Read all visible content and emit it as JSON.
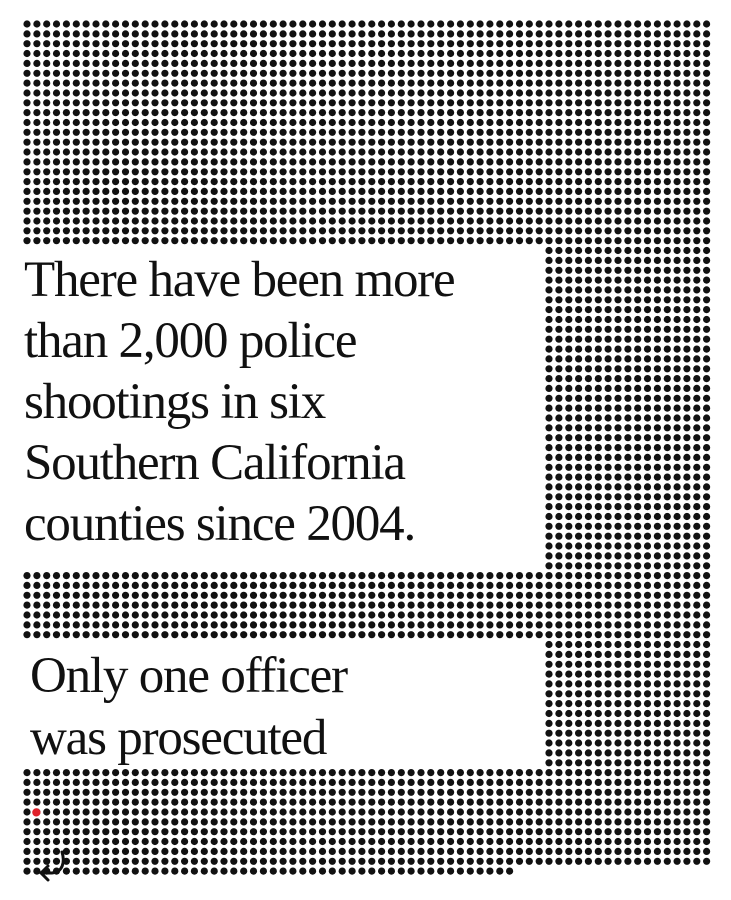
{
  "headline": {
    "lines": [
      "There have been more",
      "than 2,000 police",
      "shootings in six",
      "Southern California",
      "counties since 2004."
    ]
  },
  "subhead": {
    "lines": [
      "Only one officer",
      "was prosecuted"
    ],
    "period": "."
  },
  "colors": {
    "dot": "#111111",
    "accent": "#e0202a",
    "background": "#ffffff"
  },
  "icons": {
    "arrow": "curved-arrow-icon"
  }
}
